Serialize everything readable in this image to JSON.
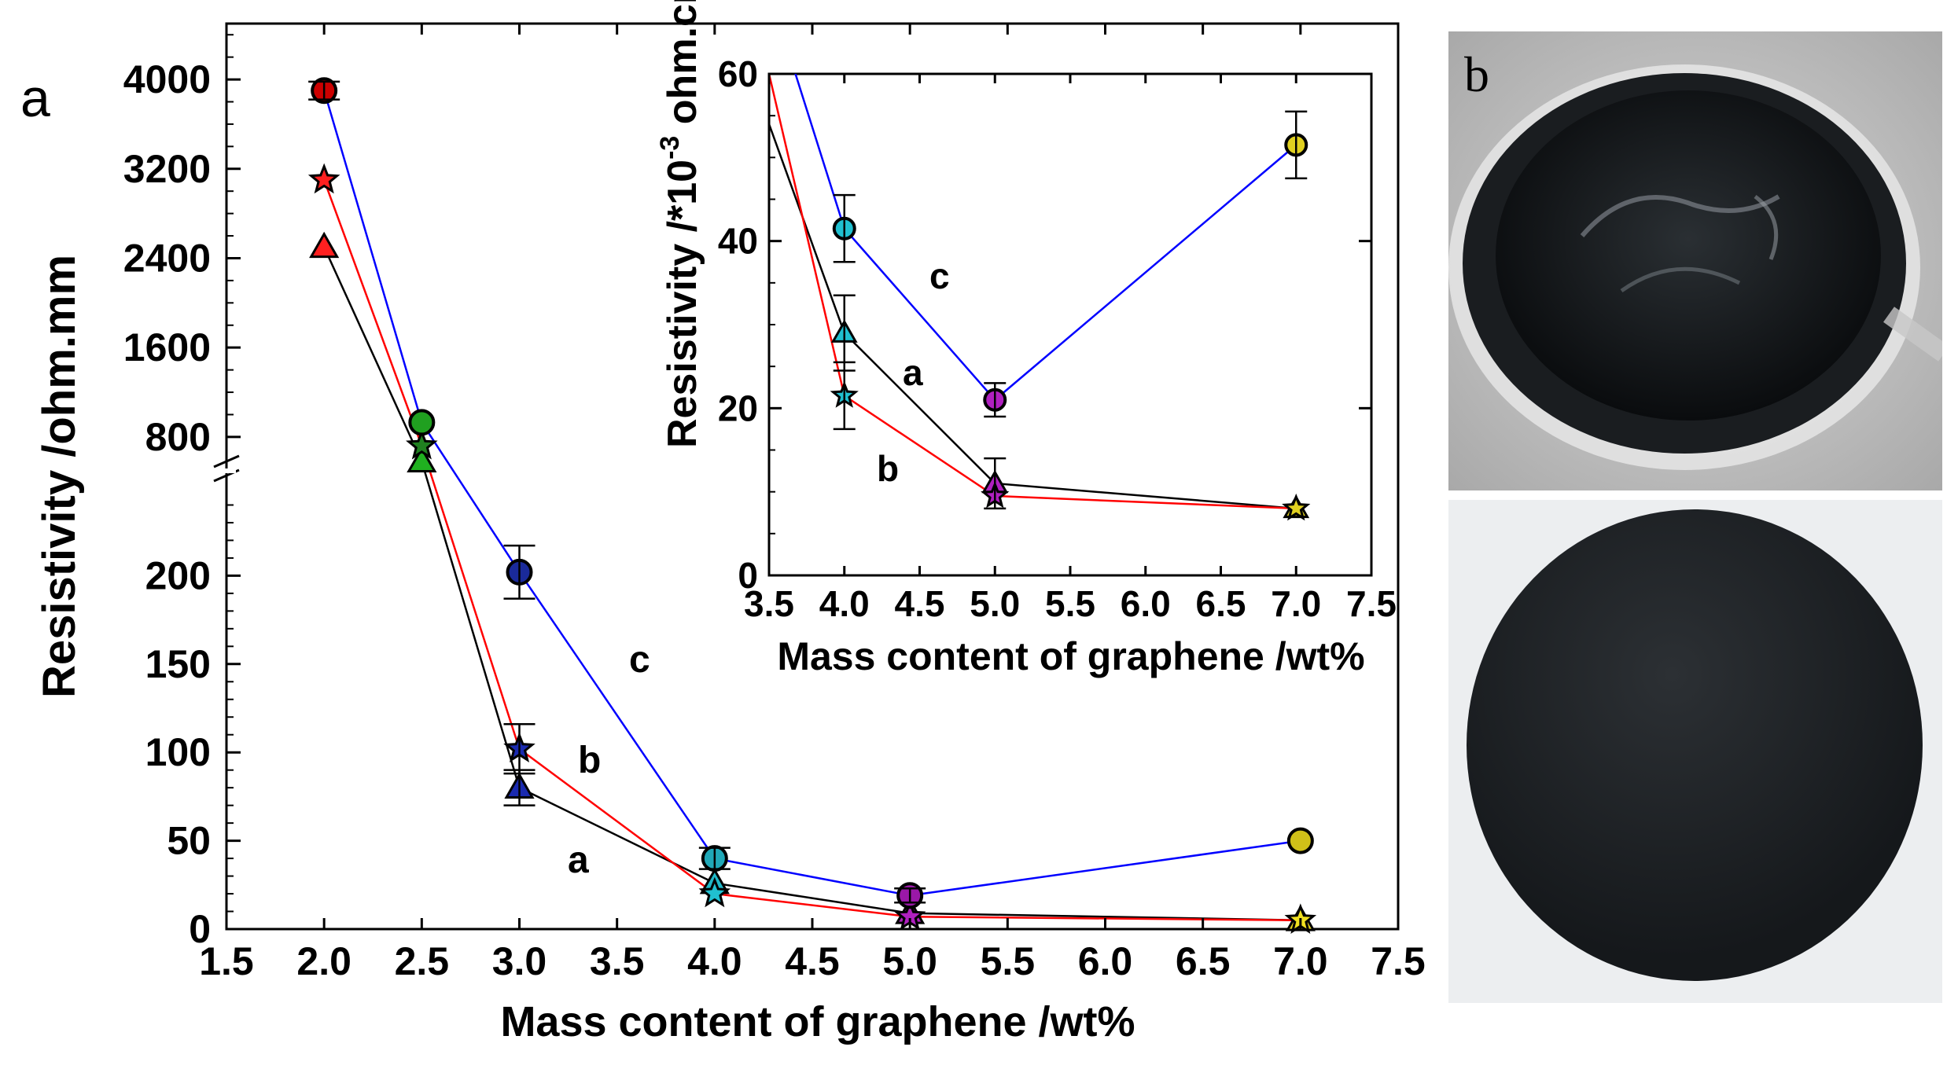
{
  "panel_labels": {
    "main": "a",
    "photos": "b"
  },
  "chart_data": [
    {
      "type": "line",
      "name": "main",
      "xlabel": "Mass content of graphene /wt%",
      "ylabel": "Resistivity /ohm.mm",
      "xlim": [
        1.5,
        7.5
      ],
      "x_ticks": [
        "1.5",
        "2.0",
        "2.5",
        "3.0",
        "3.5",
        "4.0",
        "4.5",
        "5.0",
        "5.5",
        "6.0",
        "6.5",
        "7.0",
        "7.5"
      ],
      "y_axis_break": true,
      "y_lower_range": [
        0,
        250
      ],
      "y_lower_ticks": [
        "0",
        "50",
        "100",
        "150",
        "200"
      ],
      "y_upper_range": [
        560,
        4500
      ],
      "y_upper_ticks": [
        "800",
        "1600",
        "2400",
        "3200",
        "4000"
      ],
      "x_categories": [
        2.0,
        2.5,
        3.0,
        4.0,
        5.0,
        7.0
      ],
      "series": [
        {
          "name": "a",
          "color": "#000000",
          "marker": "triangle",
          "values": [
            2500,
            580,
            80,
            26,
            9,
            5
          ]
        },
        {
          "name": "b",
          "color": "#ff0000",
          "marker": "star",
          "values": [
            3100,
            720,
            102,
            20,
            7,
            5
          ]
        },
        {
          "name": "c",
          "color": "#0000ff",
          "marker": "circle",
          "values": [
            3900,
            930,
            202,
            40,
            19,
            50
          ]
        }
      ],
      "series_labels": [
        "a",
        "b",
        "c"
      ]
    },
    {
      "type": "line",
      "name": "inset",
      "xlabel": "Mass content of graphene /wt%",
      "ylabel": "Resistivity /*10",
      "ylabel_sup": "-3",
      "ylabel_suffix": " ohm.cm",
      "xlim": [
        3.5,
        7.5
      ],
      "ylim": [
        0,
        60
      ],
      "x_ticks": [
        "3.5",
        "4.0",
        "4.5",
        "5.0",
        "5.5",
        "6.0",
        "6.5",
        "7.0",
        "7.5"
      ],
      "y_ticks": [
        "0",
        "20",
        "40",
        "60"
      ],
      "series": [
        {
          "name": "a",
          "color": "#000000",
          "x": [
            3.5,
            4.0,
            5.0,
            7.0
          ],
          "values": [
            54,
            29,
            11,
            8
          ]
        },
        {
          "name": "b",
          "color": "#ff0000",
          "x": [
            3.5,
            4.0,
            5.0,
            7.0
          ],
          "values": [
            60,
            21.5,
            9.5,
            8
          ]
        },
        {
          "name": "c",
          "color": "#0000ff",
          "x": [
            3.5,
            4.0,
            5.0,
            7.0
          ],
          "values": [
            70,
            41.5,
            21,
            51.5
          ]
        }
      ],
      "series_labels": [
        "a",
        "b",
        "c"
      ]
    }
  ],
  "photos": [
    {
      "name": "beaker-with-graphene-paste"
    },
    {
      "name": "graphene-coated-disc"
    }
  ]
}
